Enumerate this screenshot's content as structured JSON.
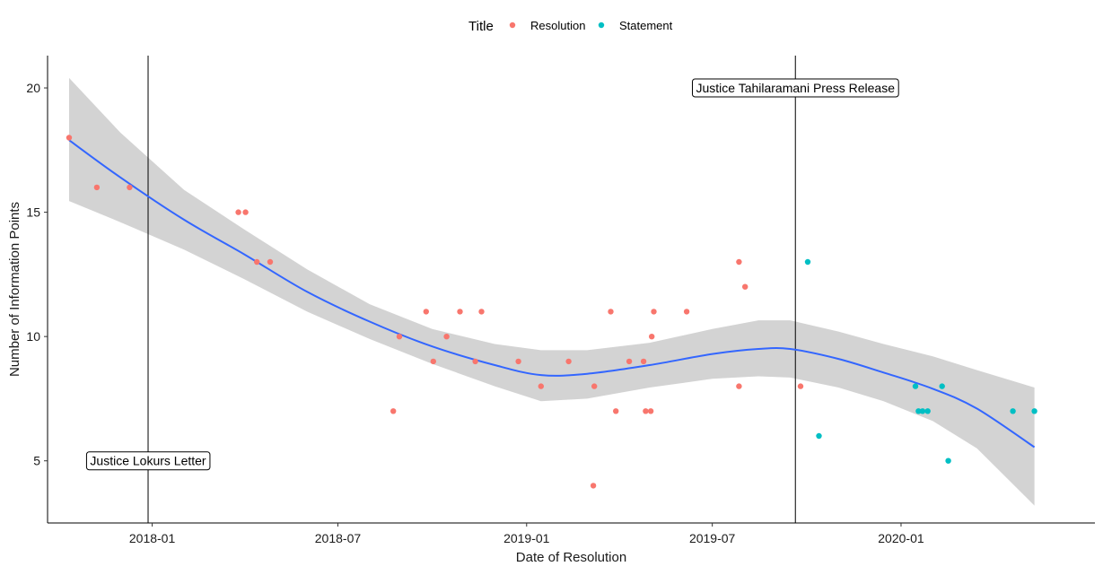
{
  "chart_data": {
    "type": "scatter",
    "xlabel": "Date of Resolution",
    "ylabel": "Number of Information Points",
    "x_ticks": [
      "2018-01",
      "2018-07",
      "2019-01",
      "2019-07",
      "2020-01"
    ],
    "y_ticks": [
      5,
      10,
      15,
      20
    ],
    "xlim": [
      "2017-09-21",
      "2020-07-08"
    ],
    "ylim": [
      2.5,
      21.3
    ],
    "grid": false,
    "legend": {
      "title": "Title",
      "placement": "top",
      "entries": [
        {
          "name": "Resolution",
          "color": "#F8766D"
        },
        {
          "name": "Statement",
          "color": "#00BFC4"
        }
      ]
    },
    "series": [
      {
        "name": "Resolution",
        "color": "#F8766D",
        "points": [
          {
            "x": "2017-10-12",
            "y": 18
          },
          {
            "x": "2017-11-08",
            "y": 16
          },
          {
            "x": "2017-12-10",
            "y": 16
          },
          {
            "x": "2018-03-26",
            "y": 15
          },
          {
            "x": "2018-04-02",
            "y": 15
          },
          {
            "x": "2018-04-13",
            "y": 13
          },
          {
            "x": "2018-04-26",
            "y": 13
          },
          {
            "x": "2018-08-24",
            "y": 7
          },
          {
            "x": "2018-08-30",
            "y": 10
          },
          {
            "x": "2018-09-25",
            "y": 11
          },
          {
            "x": "2018-10-02",
            "y": 9
          },
          {
            "x": "2018-10-15",
            "y": 10
          },
          {
            "x": "2018-10-28",
            "y": 11
          },
          {
            "x": "2018-11-12",
            "y": 9
          },
          {
            "x": "2018-11-18",
            "y": 11
          },
          {
            "x": "2018-12-24",
            "y": 9
          },
          {
            "x": "2019-01-15",
            "y": 8
          },
          {
            "x": "2019-02-11",
            "y": 9
          },
          {
            "x": "2019-03-07",
            "y": 4
          },
          {
            "x": "2019-03-08",
            "y": 8
          },
          {
            "x": "2019-03-24",
            "y": 11
          },
          {
            "x": "2019-03-29",
            "y": 7
          },
          {
            "x": "2019-04-11",
            "y": 9
          },
          {
            "x": "2019-04-25",
            "y": 9
          },
          {
            "x": "2019-04-27",
            "y": 7
          },
          {
            "x": "2019-05-02",
            "y": 7
          },
          {
            "x": "2019-05-03",
            "y": 10
          },
          {
            "x": "2019-05-05",
            "y": 11
          },
          {
            "x": "2019-06-06",
            "y": 11
          },
          {
            "x": "2019-07-27",
            "y": 13
          },
          {
            "x": "2019-07-27",
            "y": 8
          },
          {
            "x": "2019-08-02",
            "y": 12
          },
          {
            "x": "2019-09-25",
            "y": 8
          }
        ]
      },
      {
        "name": "Statement",
        "color": "#00BFC4",
        "points": [
          {
            "x": "2019-10-02",
            "y": 13
          },
          {
            "x": "2019-10-13",
            "y": 6
          },
          {
            "x": "2020-01-15",
            "y": 8
          },
          {
            "x": "2020-01-18",
            "y": 7
          },
          {
            "x": "2020-01-22",
            "y": 7
          },
          {
            "x": "2020-01-27",
            "y": 7
          },
          {
            "x": "2020-02-10",
            "y": 8
          },
          {
            "x": "2020-02-16",
            "y": 5
          },
          {
            "x": "2020-04-19",
            "y": 7
          },
          {
            "x": "2020-05-10",
            "y": 7
          }
        ]
      }
    ],
    "smooth": {
      "color": "#3366FF",
      "band_color": "#D3D3D3",
      "points": [
        {
          "x": "2017-10-12",
          "y": 17.9,
          "lo": 15.45,
          "hi": 20.4
        },
        {
          "x": "2017-12-01",
          "y": 16.4,
          "lo": 14.6,
          "hi": 18.2
        },
        {
          "x": "2018-02-01",
          "y": 14.7,
          "lo": 13.5,
          "hi": 15.9
        },
        {
          "x": "2018-04-01",
          "y": 13.3,
          "lo": 12.3,
          "hi": 14.3
        },
        {
          "x": "2018-06-01",
          "y": 11.8,
          "lo": 11.0,
          "hi": 12.7
        },
        {
          "x": "2018-08-01",
          "y": 10.6,
          "lo": 9.9,
          "hi": 11.3
        },
        {
          "x": "2018-10-01",
          "y": 9.6,
          "lo": 8.9,
          "hi": 10.3
        },
        {
          "x": "2018-12-01",
          "y": 8.85,
          "lo": 8.0,
          "hi": 9.7
        },
        {
          "x": "2019-01-15",
          "y": 8.45,
          "lo": 7.4,
          "hi": 9.45
        },
        {
          "x": "2019-03-01",
          "y": 8.5,
          "lo": 7.5,
          "hi": 9.45
        },
        {
          "x": "2019-05-01",
          "y": 8.85,
          "lo": 7.95,
          "hi": 9.75
        },
        {
          "x": "2019-07-01",
          "y": 9.3,
          "lo": 8.3,
          "hi": 10.3
        },
        {
          "x": "2019-08-15",
          "y": 9.5,
          "lo": 8.4,
          "hi": 10.65
        },
        {
          "x": "2019-09-15",
          "y": 9.5,
          "lo": 8.35,
          "hi": 10.65
        },
        {
          "x": "2019-11-01",
          "y": 9.1,
          "lo": 7.95,
          "hi": 10.2
        },
        {
          "x": "2019-12-15",
          "y": 8.55,
          "lo": 7.4,
          "hi": 9.7
        },
        {
          "x": "2020-02-01",
          "y": 7.9,
          "lo": 6.6,
          "hi": 9.2
        },
        {
          "x": "2020-03-15",
          "y": 7.1,
          "lo": 5.5,
          "hi": 8.65
        },
        {
          "x": "2020-05-10",
          "y": 5.55,
          "lo": 3.2,
          "hi": 7.95
        }
      ]
    },
    "annotations": [
      {
        "label": "Justice Lokurs Letter",
        "line_x": "2017-12-28",
        "label_y": 5
      },
      {
        "label": "Justice Tahilaramani Press Release",
        "line_x": "2019-09-20",
        "label_y": 20
      }
    ]
  }
}
